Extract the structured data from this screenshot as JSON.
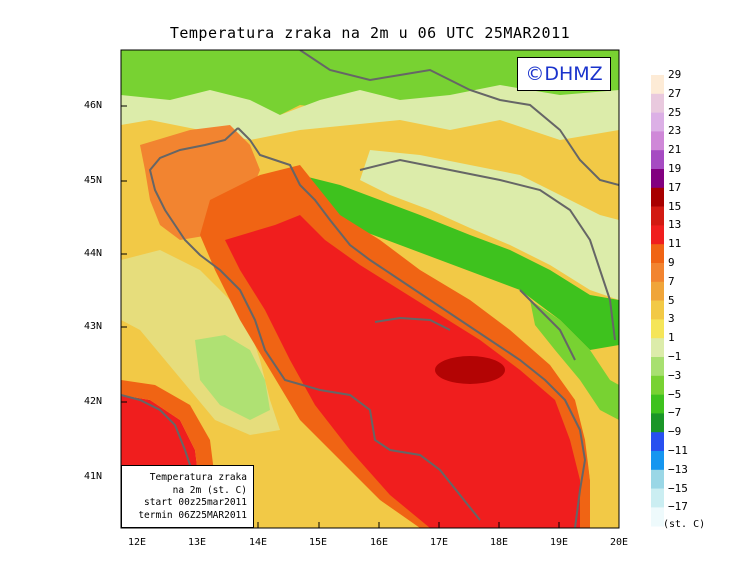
{
  "title": "Temperatura zraka na 2m u 06 UTC 25MAR2011",
  "logo": "©DHMZ",
  "info_box": {
    "line1": "Temperatura zraka",
    "line2": "na 2m (st. C)",
    "line3": "start 00z25mar2011",
    "line4": "termin 06Z25MAR2011"
  },
  "lat_ticks": [
    "46N",
    "45N",
    "44N",
    "43N",
    "42N",
    "41N"
  ],
  "lon_ticks": [
    "12E",
    "13E",
    "14E",
    "15E",
    "16E",
    "17E",
    "18E",
    "19E",
    "20E"
  ],
  "legend": {
    "labels": [
      "29",
      "27",
      "25",
      "23",
      "21",
      "19",
      "17",
      "15",
      "13",
      "11",
      "9",
      "7",
      "5",
      "3",
      "1",
      "−1",
      "−3",
      "−5",
      "−7",
      "−9",
      "−11",
      "−13",
      "−15",
      "−17"
    ],
    "unit": "(st. C)",
    "colors": [
      "#fdebd6",
      "#e9c9de",
      "#dcb0e6",
      "#cf88d8",
      "#a64bc2",
      "#820080",
      "#a80000",
      "#d21a12",
      "#f01e1e",
      "#f06414",
      "#f28430",
      "#f0a53a",
      "#f2c946",
      "#f5e559",
      "#dcecaa",
      "#a8e070",
      "#78d232",
      "#3ec21e",
      "#1a9628",
      "#2850f0",
      "#1696f0",
      "#9ad7e6",
      "#cbeef2",
      "#eefafc"
    ]
  },
  "colors": {
    "sea_red": "#f01e1e",
    "warm_orange": "#f06414",
    "orange": "#f28430",
    "yellow_warm": "#f0a53a",
    "yellow": "#f2c946",
    "pale_yellow": "#f5e559",
    "light_green": "#dcecaa",
    "green": "#3ec21e",
    "mid_green": "#78d232",
    "dark_red": "#a80000",
    "coast": "#666666"
  }
}
